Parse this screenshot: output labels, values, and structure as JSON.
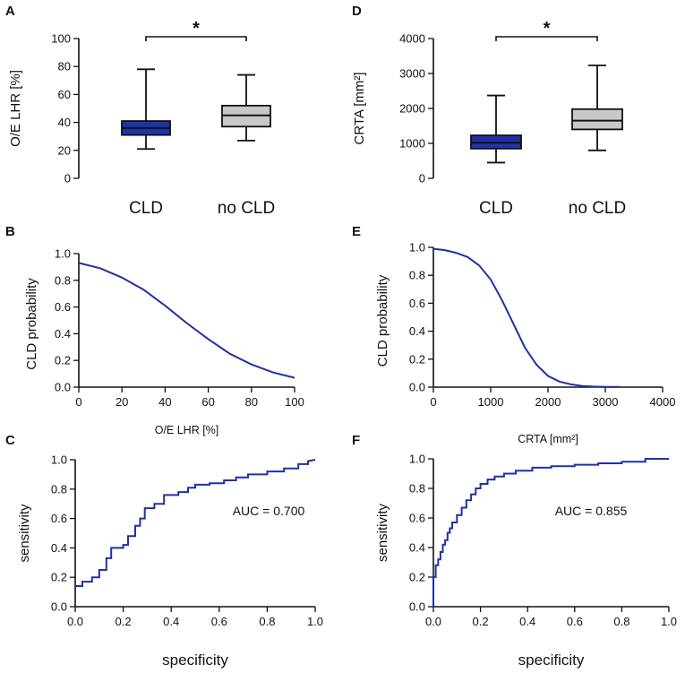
{
  "colors": {
    "cld_box": "#1f33a8",
    "no_cld_box": "#c8c8c8",
    "curve": "#2130a5",
    "axis": "#111111"
  },
  "chart_data": [
    {
      "panel": "A",
      "type": "box",
      "ylabel": "O/E LHR [%]",
      "yticks": [
        0,
        20,
        40,
        60,
        80,
        100
      ],
      "ylim": [
        0,
        100
      ],
      "categories": [
        "CLD",
        "no CLD"
      ],
      "boxes": [
        {
          "name": "CLD",
          "min": 21,
          "q1": 31,
          "median": 36,
          "q3": 41,
          "max": 78,
          "color_key": "cld_box"
        },
        {
          "name": "no CLD",
          "min": 27,
          "q1": 37,
          "median": 45,
          "q3": 52,
          "max": 74,
          "color_key": "no_cld_box"
        }
      ],
      "significance": {
        "label": "*",
        "value": 96
      }
    },
    {
      "panel": "D",
      "type": "box",
      "ylabel": "CRTA [mm²]",
      "yticks": [
        0,
        1000,
        2000,
        3000,
        4000
      ],
      "ylim": [
        0,
        4000
      ],
      "categories": [
        "CLD",
        "no CLD"
      ],
      "boxes": [
        {
          "name": "CLD",
          "min": 450,
          "q1": 850,
          "median": 1020,
          "q3": 1230,
          "max": 2370,
          "color_key": "cld_box"
        },
        {
          "name": "no CLD",
          "min": 800,
          "q1": 1400,
          "median": 1650,
          "q3": 1980,
          "max": 3230,
          "color_key": "no_cld_box"
        }
      ],
      "significance": {
        "label": "*",
        "value": 4000
      }
    },
    {
      "panel": "B",
      "type": "line",
      "xlabel": "O/E LHR [%]",
      "ylabel": "CLD probability",
      "xticks": [
        0,
        20,
        40,
        60,
        80,
        100
      ],
      "yticks": [
        0.0,
        0.2,
        0.4,
        0.6,
        0.8,
        1.0
      ],
      "xlim": [
        0,
        100
      ],
      "ylim": [
        0,
        1
      ],
      "series": [
        {
          "name": "CLD probability",
          "x": [
            0,
            10,
            20,
            30,
            40,
            50,
            60,
            70,
            80,
            90,
            100
          ],
          "y": [
            0.93,
            0.89,
            0.82,
            0.73,
            0.61,
            0.48,
            0.36,
            0.25,
            0.17,
            0.11,
            0.07
          ]
        }
      ]
    },
    {
      "panel": "E",
      "type": "line",
      "xlabel": "CRTA [mm²]",
      "ylabel": "CLD probability",
      "xticks": [
        0,
        1000,
        2000,
        3000,
        4000
      ],
      "yticks": [
        0.0,
        0.2,
        0.4,
        0.6,
        0.8,
        1.0
      ],
      "xlim": [
        0,
        4000
      ],
      "ylim": [
        0,
        1
      ],
      "series": [
        {
          "name": "CLD probability",
          "x": [
            0,
            200,
            400,
            600,
            800,
            1000,
            1200,
            1400,
            1600,
            1800,
            2000,
            2200,
            2400,
            2600,
            2800,
            3000,
            3250
          ],
          "y": [
            0.99,
            0.98,
            0.96,
            0.93,
            0.87,
            0.77,
            0.62,
            0.45,
            0.28,
            0.16,
            0.08,
            0.04,
            0.02,
            0.008,
            0.004,
            0.002,
            0.001
          ]
        }
      ]
    },
    {
      "panel": "C",
      "type": "roc",
      "xlabel": "specificity",
      "ylabel": "sensitivity",
      "xticks": [
        0.0,
        0.2,
        0.4,
        0.6,
        0.8,
        1.0
      ],
      "yticks": [
        0.0,
        0.2,
        0.4,
        0.6,
        0.8,
        1.0
      ],
      "xlim": [
        0,
        1
      ],
      "ylim": [
        0,
        1
      ],
      "annotation": "AUC = 0.700",
      "series": [
        {
          "name": "ROC",
          "x": [
            0.0,
            0.0,
            0.03,
            0.03,
            0.07,
            0.07,
            0.1,
            0.1,
            0.13,
            0.13,
            0.15,
            0.15,
            0.2,
            0.2,
            0.22,
            0.22,
            0.25,
            0.25,
            0.27,
            0.27,
            0.29,
            0.29,
            0.33,
            0.33,
            0.37,
            0.37,
            0.43,
            0.43,
            0.47,
            0.47,
            0.5,
            0.5,
            0.56,
            0.56,
            0.62,
            0.62,
            0.67,
            0.67,
            0.72,
            0.72,
            0.8,
            0.8,
            0.87,
            0.87,
            0.93,
            0.93,
            0.97,
            0.97,
            1.0
          ],
          "y": [
            0.13,
            0.14,
            0.14,
            0.17,
            0.17,
            0.2,
            0.2,
            0.25,
            0.25,
            0.33,
            0.33,
            0.4,
            0.4,
            0.42,
            0.42,
            0.48,
            0.48,
            0.55,
            0.55,
            0.6,
            0.6,
            0.67,
            0.67,
            0.7,
            0.7,
            0.76,
            0.76,
            0.78,
            0.78,
            0.81,
            0.81,
            0.83,
            0.83,
            0.84,
            0.84,
            0.86,
            0.86,
            0.88,
            0.88,
            0.9,
            0.9,
            0.92,
            0.92,
            0.94,
            0.94,
            0.97,
            0.97,
            0.99,
            1.0
          ]
        }
      ]
    },
    {
      "panel": "F",
      "type": "roc",
      "xlabel": "specificity",
      "ylabel": "sensitivity",
      "xticks": [
        0.0,
        0.2,
        0.4,
        0.6,
        0.8,
        1.0
      ],
      "yticks": [
        0.0,
        0.2,
        0.4,
        0.6,
        0.8,
        1.0
      ],
      "xlim": [
        0,
        1
      ],
      "ylim": [
        0,
        1
      ],
      "annotation": "AUC = 0.855",
      "series": [
        {
          "name": "ROC",
          "x": [
            0.0,
            0.0,
            0.01,
            0.01,
            0.02,
            0.02,
            0.03,
            0.03,
            0.04,
            0.04,
            0.05,
            0.05,
            0.06,
            0.06,
            0.07,
            0.07,
            0.08,
            0.08,
            0.1,
            0.1,
            0.12,
            0.12,
            0.14,
            0.14,
            0.16,
            0.16,
            0.18,
            0.18,
            0.2,
            0.2,
            0.23,
            0.23,
            0.26,
            0.26,
            0.3,
            0.3,
            0.35,
            0.35,
            0.42,
            0.42,
            0.5,
            0.5,
            0.6,
            0.6,
            0.7,
            0.7,
            0.8,
            0.8,
            0.9,
            0.9,
            1.0
          ],
          "y": [
            0.0,
            0.2,
            0.2,
            0.28,
            0.28,
            0.32,
            0.32,
            0.37,
            0.37,
            0.42,
            0.42,
            0.45,
            0.45,
            0.5,
            0.5,
            0.53,
            0.53,
            0.57,
            0.57,
            0.62,
            0.62,
            0.67,
            0.67,
            0.72,
            0.72,
            0.76,
            0.76,
            0.8,
            0.8,
            0.83,
            0.83,
            0.86,
            0.86,
            0.88,
            0.88,
            0.9,
            0.9,
            0.92,
            0.92,
            0.94,
            0.94,
            0.95,
            0.95,
            0.96,
            0.96,
            0.97,
            0.97,
            0.98,
            0.98,
            1.0,
            1.0
          ]
        }
      ]
    }
  ]
}
